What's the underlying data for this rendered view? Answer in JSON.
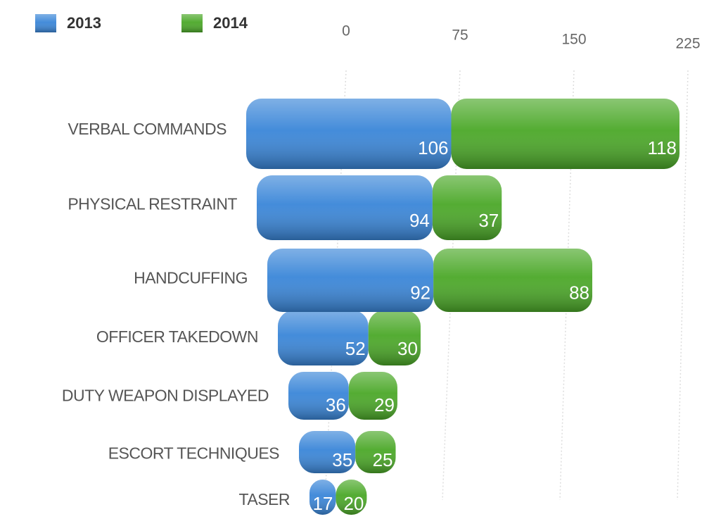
{
  "chart_data": {
    "type": "bar",
    "orientation": "horizontal",
    "stacked": true,
    "categories": [
      "VERBAL COMMANDS",
      "PHYSICAL RESTRAINT",
      "HANDCUFFING",
      "OFFICER TAKEDOWN",
      "DUTY WEAPON DISPLAYED",
      "ESCORT TECHNIQUES",
      "TASER"
    ],
    "series": [
      {
        "name": "2013",
        "color": "#3a86d8",
        "values": [
          106,
          94,
          92,
          52,
          36,
          35,
          17
        ]
      },
      {
        "name": "2014",
        "color": "#4ba828",
        "values": [
          118,
          37,
          88,
          30,
          29,
          25,
          20
        ]
      }
    ],
    "xlim": [
      0,
      225
    ],
    "xticks": [
      0,
      75,
      150,
      225
    ],
    "grid": true
  }
}
